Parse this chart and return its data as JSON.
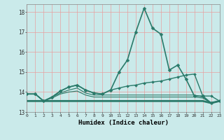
{
  "xlabel": "Humidex (Indice chaleur)",
  "bg_color": "#caeaea",
  "grid_color": "#e8a0a0",
  "line_color": "#2a7a6a",
  "xmin": 0,
  "xmax": 23,
  "ymin": 13,
  "ymax": 18.4,
  "yticks": [
    13,
    14,
    15,
    16,
    17,
    18
  ],
  "xticks": [
    0,
    1,
    2,
    3,
    4,
    5,
    6,
    7,
    8,
    9,
    10,
    11,
    12,
    13,
    14,
    15,
    16,
    17,
    18,
    19,
    20,
    21,
    22,
    23
  ],
  "series": [
    {
      "x": [
        0,
        1,
        2,
        3,
        4,
        5,
        6,
        7,
        8,
        9,
        10,
        11,
        12,
        13,
        14,
        15,
        16,
        17,
        18,
        19,
        20,
        21,
        22,
        23
      ],
      "y": [
        13.9,
        13.9,
        13.55,
        13.75,
        14.05,
        14.25,
        14.35,
        14.1,
        13.95,
        13.9,
        14.1,
        15.0,
        15.6,
        17.0,
        18.2,
        17.2,
        16.9,
        15.1,
        15.35,
        14.65,
        13.8,
        13.8,
        13.45,
        13.55
      ],
      "marker": true,
      "linewidth": 1.2,
      "markersize": 2.5
    },
    {
      "x": [
        0,
        1,
        2,
        3,
        4,
        5,
        6,
        7,
        8,
        9,
        10,
        11,
        12,
        13,
        14,
        15,
        16,
        17,
        18,
        19,
        20,
        21,
        22,
        23
      ],
      "y": [
        13.9,
        13.9,
        13.55,
        13.75,
        14.05,
        14.25,
        14.35,
        14.1,
        13.95,
        13.9,
        14.1,
        14.2,
        14.3,
        14.35,
        14.45,
        14.5,
        14.55,
        14.65,
        14.75,
        14.85,
        14.9,
        13.8,
        13.8,
        13.55
      ],
      "marker": true,
      "linewidth": 1.0,
      "markersize": 2.0
    },
    {
      "x": [
        0,
        1,
        2,
        3,
        4,
        5,
        6,
        7,
        8,
        9,
        10,
        11,
        12,
        13,
        14,
        15,
        16,
        17,
        18,
        19,
        20,
        21,
        22,
        23
      ],
      "y": [
        13.55,
        13.55,
        13.55,
        13.55,
        13.55,
        13.55,
        13.55,
        13.55,
        13.55,
        13.55,
        13.55,
        13.55,
        13.55,
        13.55,
        13.55,
        13.55,
        13.55,
        13.55,
        13.55,
        13.55,
        13.55,
        13.55,
        13.45,
        13.55
      ],
      "marker": false,
      "linewidth": 2.0,
      "markersize": 0
    },
    {
      "x": [
        0,
        1,
        2,
        3,
        4,
        5,
        6,
        7,
        8,
        9,
        10,
        11,
        12,
        13,
        14,
        15,
        16,
        17,
        18,
        19,
        20,
        21,
        22,
        23
      ],
      "y": [
        13.9,
        13.9,
        13.55,
        13.7,
        13.9,
        14.0,
        14.05,
        13.85,
        13.75,
        13.75,
        13.75,
        13.75,
        13.75,
        13.75,
        13.75,
        13.75,
        13.75,
        13.75,
        13.75,
        13.75,
        13.75,
        13.7,
        13.45,
        13.55
      ],
      "marker": false,
      "linewidth": 0.8,
      "markersize": 0
    },
    {
      "x": [
        0,
        1,
        2,
        3,
        4,
        5,
        6,
        7,
        8,
        9,
        10,
        11,
        12,
        13,
        14,
        15,
        16,
        17,
        18,
        19,
        20,
        21,
        22,
        23
      ],
      "y": [
        13.9,
        13.9,
        13.55,
        13.75,
        13.95,
        14.1,
        14.2,
        13.95,
        13.85,
        13.85,
        13.85,
        13.85,
        13.85,
        13.85,
        13.85,
        13.85,
        13.85,
        13.85,
        13.85,
        13.85,
        13.85,
        13.75,
        13.45,
        13.55
      ],
      "marker": false,
      "linewidth": 0.8,
      "markersize": 0
    }
  ]
}
